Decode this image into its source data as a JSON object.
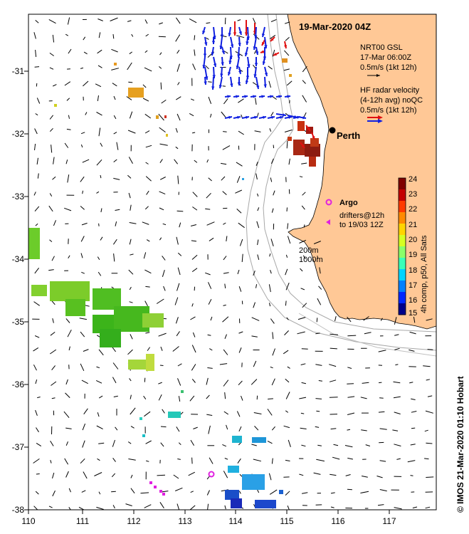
{
  "header": {
    "date_title": "19-Mar-2020 04Z"
  },
  "axes": {
    "lon_ticks": [
      "110",
      "111",
      "112",
      "113",
      "114",
      "115",
      "116",
      "117"
    ],
    "lat_ticks": [
      "-31",
      "-32",
      "-33",
      "-34",
      "-35",
      "-36",
      "-37",
      "-38"
    ]
  },
  "legend": {
    "gsl_line1": "NRT00 GSL",
    "gsl_line2": "17-Mar 06:00Z",
    "gsl_line3": "0.5m/s (1kt 12h)",
    "hf_line1": "HF radar velocity",
    "hf_line2": "(4-12h avg) noQC",
    "hf_line3": "0.5m/s (1kt 12h)"
  },
  "places": {
    "city": "Perth",
    "argo": "Argo"
  },
  "drifters": {
    "line1": "drifters@12h",
    "line2": "to 19/03 12Z"
  },
  "isobaths": {
    "shallow": "200m",
    "deep": "1000m"
  },
  "colorbar": {
    "label": "4h comp, p50, All Sats",
    "ticks": [
      "24",
      "23",
      "22",
      "21",
      "20",
      "19",
      "18",
      "17",
      "16",
      "15"
    ],
    "min": 15,
    "max": 24,
    "colormap": "jet"
  },
  "credit": "© IMOS 21-Mar-2020 01:10 Hobart",
  "colors": {
    "land": "#ffc896",
    "hf_red": "#e01010",
    "hf_blue": "#1020e0",
    "argo": "#e020e0"
  }
}
